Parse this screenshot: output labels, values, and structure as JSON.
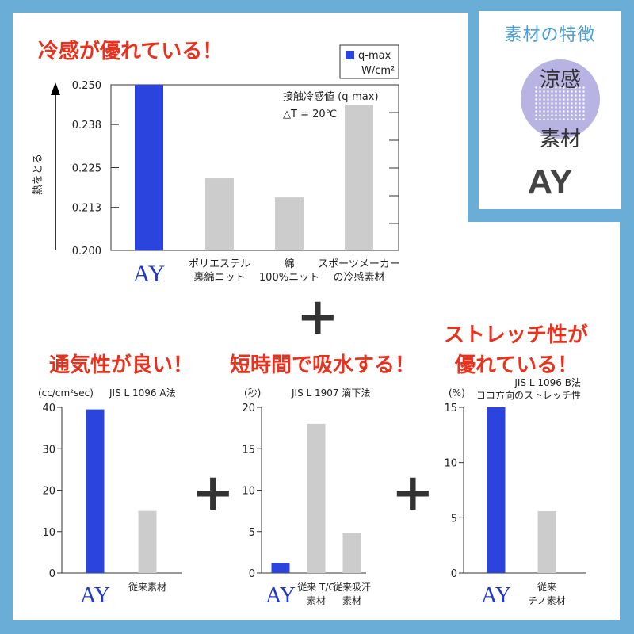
{
  "badge": {
    "title": "素材の特徴",
    "circle_line1": "涼感",
    "circle_line2": "素材",
    "brand": "AY"
  },
  "colors": {
    "frame": "#6aaed8",
    "accent_bar": "#2a44dd",
    "gray_bar": "#cccccc",
    "title_red": "#e8321e",
    "brand_blue": "#2238c8"
  },
  "plus_sign": "+",
  "chart_data": [
    {
      "type": "bar",
      "title": "冷感が優れている！",
      "ylabel": "熱をとる",
      "legend": {
        "swatch": "q-max",
        "unit": "W/cm²"
      },
      "annotation_line1": "接触冷感値 (q-max)",
      "annotation_line2": "△T = 20℃",
      "ylim": [
        0.2,
        0.25
      ],
      "yticks": [
        "0.250",
        "0.238",
        "0.225",
        "0.213",
        "0.200"
      ],
      "ytick_values": [
        0.25,
        0.238,
        0.225,
        0.213,
        0.2
      ],
      "categories": [
        "AY",
        "ポリエステル\n裏綿ニット",
        "綿\n100%ニット",
        "スポーツメーカー\nの冷感素材"
      ],
      "values": [
        0.25,
        0.222,
        0.216,
        0.244
      ],
      "highlight_index": 0
    },
    {
      "type": "bar",
      "title": "通気性が良い！",
      "unit_label": "(cc/cm²sec)",
      "method": "JIS L 1096  A法",
      "ylim": [
        0,
        40
      ],
      "yticks": [
        "40",
        "30",
        "20",
        "10",
        "0"
      ],
      "ytick_values": [
        40,
        30,
        20,
        10,
        0
      ],
      "categories": [
        "AY",
        "従来素材"
      ],
      "values": [
        39.5,
        15
      ],
      "highlight_index": 0
    },
    {
      "type": "bar",
      "title": "短時間で吸水する！",
      "unit_label": "(秒)",
      "method": "JIS L 1907  滴下法",
      "ylim": [
        0,
        20
      ],
      "yticks": [
        "20",
        "15",
        "10",
        "5",
        "0"
      ],
      "ytick_values": [
        20,
        15,
        10,
        5,
        0
      ],
      "categories": [
        "AY",
        "従来 T/C\n素材",
        "従来吸汗\n素材"
      ],
      "values": [
        1.2,
        18,
        4.8
      ],
      "highlight_index": 0
    },
    {
      "type": "bar",
      "title_line1": "ストレッチ性が",
      "title_line2": "優れている！",
      "unit_label": "(%)",
      "method_line1": "JIS L 1096  B法",
      "method_line2": "ヨコ方向のストレッチ性",
      "ylim": [
        0,
        15
      ],
      "yticks": [
        "15",
        "10",
        "5",
        "0"
      ],
      "ytick_values": [
        15,
        10,
        5,
        0
      ],
      "categories": [
        "AY",
        "従来\nチノ素材"
      ],
      "values": [
        15,
        5.6
      ],
      "highlight_index": 0
    }
  ]
}
